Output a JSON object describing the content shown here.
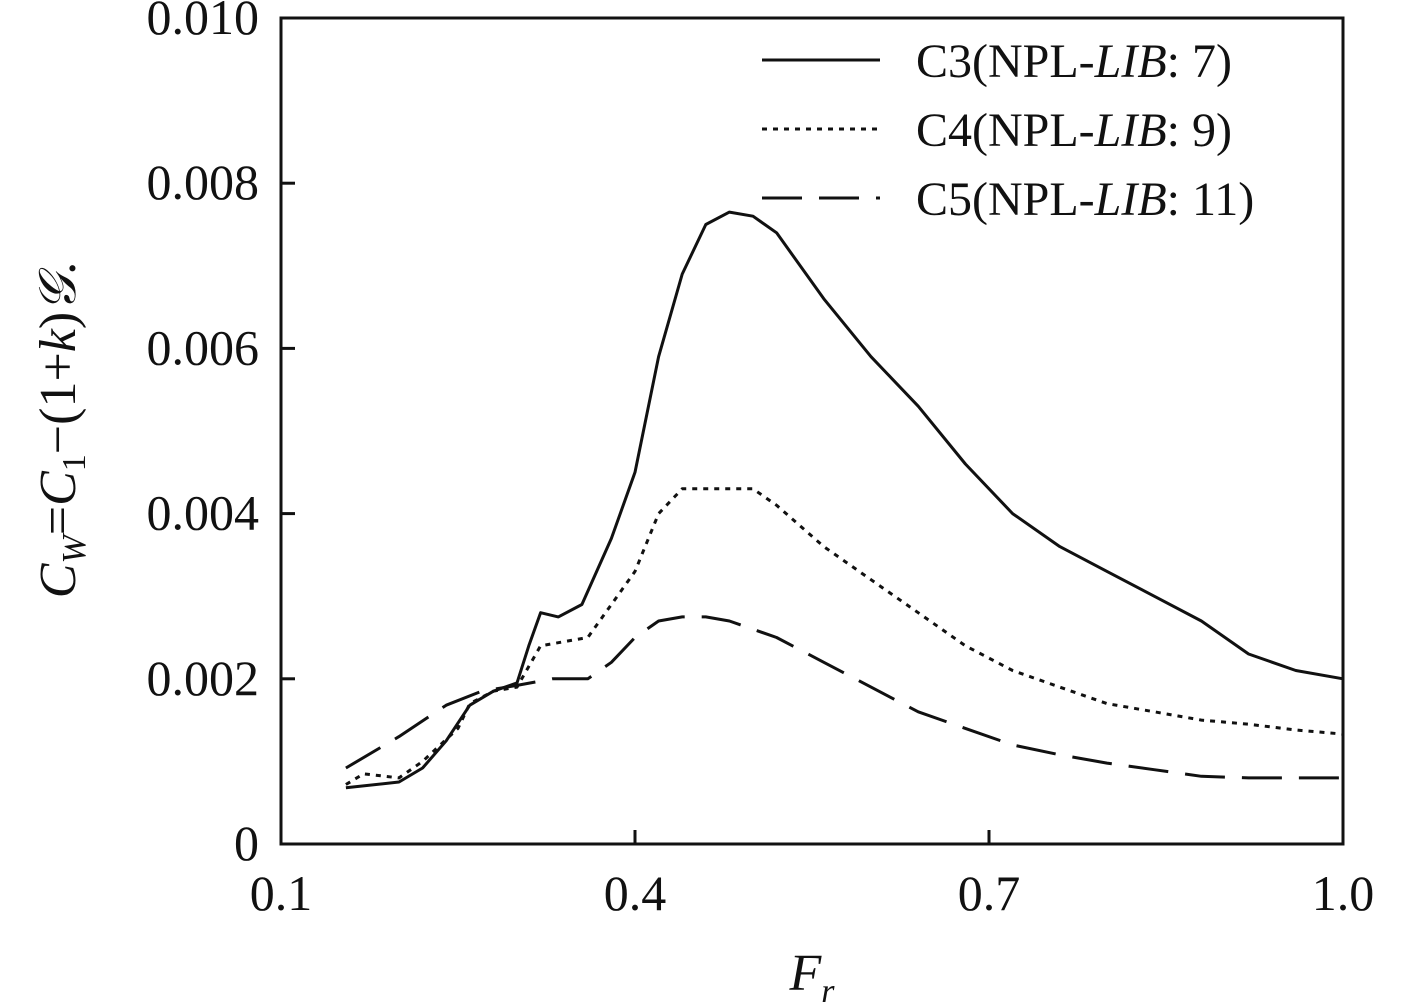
{
  "chart_data": {
    "type": "line",
    "xlabel": "F",
    "xlabel_sub": "r",
    "ylabel": {
      "parts": [
        "C",
        "W",
        "=",
        "C",
        "1",
        "−(1+",
        "k",
        ")",
        "𝒢",
        "."
      ]
    },
    "xlim": [
      0.1,
      1.0
    ],
    "ylim": [
      0,
      0.01
    ],
    "x_ticks": [
      0.1,
      0.4,
      0.7,
      1.0
    ],
    "x_tick_labels": [
      "0.1",
      "0.4",
      "0.7",
      "1.0"
    ],
    "y_ticks": [
      0,
      0.002,
      0.004,
      0.006,
      0.008,
      0.01
    ],
    "y_tick_labels": [
      "0",
      "0.002",
      "0.004",
      "0.006",
      "0.008",
      "0.010"
    ],
    "legend": [
      {
        "prefix": "C3(NPL-",
        "italic": "LIB",
        "suffix": ": 7)"
      },
      {
        "prefix": "C4(NPL-",
        "italic": "LIB",
        "suffix": ": 9)"
      },
      {
        "prefix": "C5(NPL-",
        "italic": "LIB",
        "suffix": ": 11)"
      }
    ],
    "series": [
      {
        "name": "C3(NPL-LIB: 7)",
        "style": "solid",
        "x": [
          0.155,
          0.2,
          0.22,
          0.24,
          0.26,
          0.28,
          0.3,
          0.31,
          0.32,
          0.335,
          0.355,
          0.38,
          0.4,
          0.42,
          0.44,
          0.46,
          0.48,
          0.5,
          0.51,
          0.52,
          0.56,
          0.6,
          0.64,
          0.68,
          0.72,
          0.76,
          0.8,
          0.84,
          0.88,
          0.92,
          0.96,
          1.0
        ],
        "y": [
          0.00068,
          0.00075,
          0.00092,
          0.00125,
          0.00168,
          0.00185,
          0.00195,
          0.0024,
          0.0028,
          0.00275,
          0.0029,
          0.0037,
          0.0045,
          0.0059,
          0.0069,
          0.0075,
          0.00765,
          0.0076,
          0.0075,
          0.0074,
          0.0066,
          0.0059,
          0.0053,
          0.0046,
          0.004,
          0.0036,
          0.0033,
          0.003,
          0.0027,
          0.0023,
          0.0021,
          0.002
        ]
      },
      {
        "name": "C4(NPL-LIB: 9)",
        "style": "dotted",
        "x": [
          0.155,
          0.17,
          0.2,
          0.22,
          0.25,
          0.26,
          0.28,
          0.3,
          0.32,
          0.36,
          0.38,
          0.4,
          0.42,
          0.44,
          0.46,
          0.48,
          0.5,
          0.52,
          0.56,
          0.6,
          0.64,
          0.68,
          0.72,
          0.76,
          0.8,
          0.84,
          0.88,
          0.92,
          0.96,
          1.0
        ],
        "y": [
          0.00072,
          0.00085,
          0.0008,
          0.001,
          0.0014,
          0.0017,
          0.00185,
          0.0019,
          0.0024,
          0.0025,
          0.0029,
          0.0033,
          0.004,
          0.0043,
          0.0043,
          0.0043,
          0.0043,
          0.0041,
          0.0036,
          0.0032,
          0.0028,
          0.0024,
          0.0021,
          0.0019,
          0.0017,
          0.0016,
          0.0015,
          0.00145,
          0.00138,
          0.00133
        ]
      },
      {
        "name": "C5(NPL-LIB: 11)",
        "style": "dashed",
        "x": [
          0.155,
          0.2,
          0.24,
          0.27,
          0.3,
          0.33,
          0.36,
          0.38,
          0.4,
          0.42,
          0.44,
          0.46,
          0.48,
          0.52,
          0.56,
          0.6,
          0.64,
          0.68,
          0.72,
          0.76,
          0.8,
          0.84,
          0.88,
          0.92,
          0.96,
          1.0
        ],
        "y": [
          0.00092,
          0.0013,
          0.00168,
          0.00185,
          0.00192,
          0.002,
          0.002,
          0.0022,
          0.0025,
          0.0027,
          0.00275,
          0.00275,
          0.0027,
          0.0025,
          0.0022,
          0.0019,
          0.0016,
          0.0014,
          0.0012,
          0.00108,
          0.00098,
          0.0009,
          0.00082,
          0.0008,
          0.0008,
          0.0008
        ]
      }
    ]
  }
}
